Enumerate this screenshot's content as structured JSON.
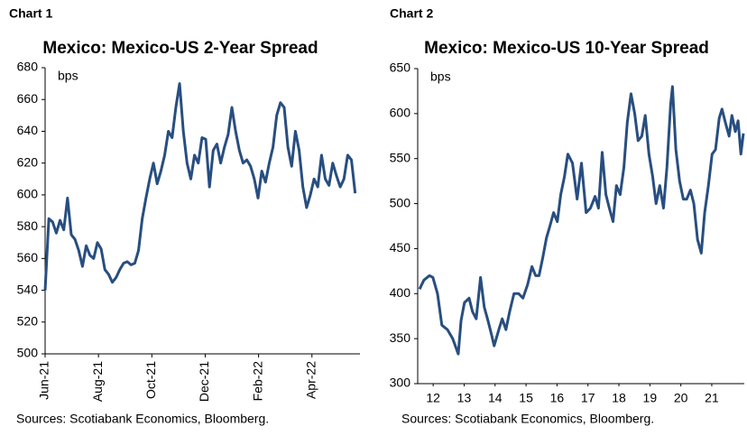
{
  "chart_data": [
    {
      "type": "line",
      "chart_label": "Chart 1",
      "title": "Mexico: Mexico-US 2-Year Spread",
      "unit_label": "bps",
      "source": "Sources: Scotiabank Economics, Bloomberg.",
      "color": "#284e80",
      "x": [
        0,
        0.14,
        0.28,
        0.42,
        0.56,
        0.7,
        0.84,
        0.98,
        1.12,
        1.26,
        1.4,
        1.54,
        1.68,
        1.82,
        1.96,
        2.1,
        2.24,
        2.38,
        2.52,
        2.66,
        2.8,
        2.94,
        3.08,
        3.22,
        3.36,
        3.5,
        3.64,
        3.78,
        3.92,
        4.06,
        4.2,
        4.34,
        4.48,
        4.62,
        4.76,
        4.9,
        5.04,
        5.18,
        5.32,
        5.46,
        5.6,
        5.74,
        5.88,
        6.02,
        6.16,
        6.3,
        6.44,
        6.58,
        6.72,
        6.86,
        7,
        7.14,
        7.28,
        7.42,
        7.56,
        7.7,
        7.84,
        7.98,
        8.12,
        8.26,
        8.4,
        8.54,
        8.68,
        8.82,
        8.96,
        9.1,
        9.24,
        9.38,
        9.52,
        9.66,
        9.8,
        9.94,
        10.08,
        10.22,
        10.36,
        10.5,
        10.64,
        10.78,
        10.92,
        11.06,
        11.2,
        11.34,
        11.48,
        11.62
      ],
      "values": [
        540,
        585,
        583,
        576,
        584,
        578,
        598,
        575,
        572,
        565,
        555,
        568,
        562,
        560,
        570,
        566,
        553,
        550,
        545,
        548,
        553,
        557,
        558,
        556,
        557,
        565,
        585,
        598,
        610,
        620,
        607,
        615,
        625,
        640,
        636,
        655,
        670,
        640,
        620,
        610,
        625,
        620,
        636,
        635,
        605,
        628,
        632,
        620,
        630,
        638,
        655,
        640,
        628,
        620,
        622,
        618,
        610,
        598,
        615,
        608,
        620,
        630,
        650,
        658,
        655,
        630,
        618,
        640,
        628,
        605,
        592,
        600,
        610,
        605,
        625,
        610,
        606,
        620,
        612,
        605,
        610,
        625,
        622,
        601
      ],
      "xlim": [
        0,
        11.8
      ],
      "xticks": [
        {
          "value": 0,
          "label": "Jun-21"
        },
        {
          "value": 2,
          "label": "Aug-21"
        },
        {
          "value": 4,
          "label": "Oct-21"
        },
        {
          "value": 6,
          "label": "Dec-21"
        },
        {
          "value": 8,
          "label": "Feb-22"
        },
        {
          "value": 10,
          "label": "Apr-22"
        }
      ],
      "ylim": [
        500,
        680
      ],
      "yticks": [
        500,
        520,
        540,
        560,
        580,
        600,
        620,
        640,
        660,
        680
      ]
    },
    {
      "type": "line",
      "chart_label": "Chart 2",
      "title": "Mexico: Mexico-US 10-Year Spread",
      "unit_label": "bps",
      "source": "Sources: Scotiabank Economics, Bloomberg.",
      "color": "#284e80",
      "x": [
        2012.06,
        2012.2,
        2012.38,
        2012.49,
        2012.64,
        2012.78,
        2012.96,
        2013.13,
        2013.31,
        2013.4,
        2013.51,
        2013.66,
        2013.77,
        2013.89,
        2014.03,
        2014.15,
        2014.27,
        2014.38,
        2014.47,
        2014.62,
        2014.73,
        2014.85,
        2014.97,
        2015.11,
        2015.26,
        2015.4,
        2015.55,
        2015.69,
        2015.81,
        2015.92,
        2016.04,
        2016.16,
        2016.27,
        2016.39,
        2016.51,
        2016.62,
        2016.74,
        2016.85,
        2017.0,
        2017.15,
        2017.29,
        2017.44,
        2017.58,
        2017.73,
        2017.84,
        2017.96,
        2018.08,
        2018.19,
        2018.31,
        2018.42,
        2018.54,
        2018.66,
        2018.77,
        2018.89,
        2019.01,
        2019.12,
        2019.24,
        2019.35,
        2019.47,
        2019.59,
        2019.7,
        2019.82,
        2019.94,
        2020.05,
        2020.17,
        2020.23,
        2020.34,
        2020.46,
        2020.58,
        2020.69,
        2020.81,
        2020.92,
        2021.04,
        2021.16,
        2021.27,
        2021.39,
        2021.51,
        2021.62,
        2021.74,
        2021.83,
        2021.94,
        2022.06,
        2022.15,
        2022.26,
        2022.35,
        2022.44,
        2022.52
      ],
      "values": [
        405,
        415,
        420,
        418,
        400,
        365,
        360,
        350,
        333,
        370,
        390,
        395,
        380,
        372,
        418,
        385,
        370,
        355,
        342,
        360,
        372,
        360,
        380,
        400,
        400,
        395,
        410,
        430,
        420,
        420,
        440,
        462,
        475,
        490,
        480,
        510,
        530,
        555,
        545,
        505,
        545,
        490,
        495,
        508,
        495,
        557,
        510,
        495,
        480,
        520,
        510,
        540,
        590,
        622,
        600,
        570,
        575,
        598,
        555,
        530,
        500,
        520,
        495,
        540,
        610,
        630,
        560,
        525,
        505,
        505,
        515,
        500,
        460,
        445,
        490,
        520,
        555,
        560,
        595,
        605,
        590,
        575,
        598,
        580,
        592,
        555,
        578
      ],
      "xlim": [
        2012,
        2022.55
      ],
      "xticks": [
        {
          "value": 2012.5,
          "label": "12"
        },
        {
          "value": 2013.5,
          "label": "13"
        },
        {
          "value": 2014.5,
          "label": "14"
        },
        {
          "value": 2015.5,
          "label": "15"
        },
        {
          "value": 2016.5,
          "label": "16"
        },
        {
          "value": 2017.5,
          "label": "17"
        },
        {
          "value": 2018.5,
          "label": "18"
        },
        {
          "value": 2019.5,
          "label": "19"
        },
        {
          "value": 2020.5,
          "label": "20"
        },
        {
          "value": 2021.5,
          "label": "21"
        }
      ],
      "ylim": [
        300,
        650
      ],
      "yticks": [
        300,
        350,
        400,
        450,
        500,
        550,
        600,
        650
      ]
    }
  ]
}
